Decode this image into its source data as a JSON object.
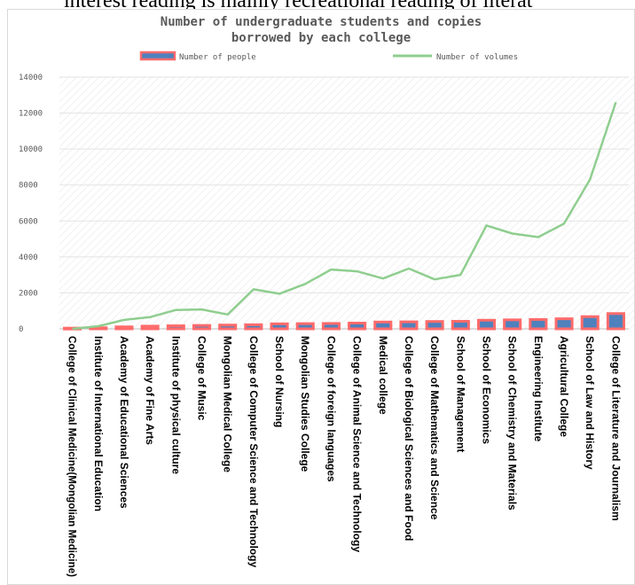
{
  "caption": "interest reading is mainly recreational reading of literat",
  "colors": {
    "bar_fill": "#4f81bd",
    "bar_border": "#ff6b6b",
    "line": "#8fce8f",
    "grid": "#e3e3e3"
  },
  "chart_data": {
    "type": "bar+line",
    "title_lines": [
      "Number of undergraduate students and copies",
      "borrowed by each college"
    ],
    "legend_position": "top",
    "ylim": [
      0,
      14000
    ],
    "yticks": [
      0,
      2000,
      4000,
      6000,
      8000,
      10000,
      12000,
      14000
    ],
    "ytick_labels": [
      "0",
      "2000",
      "4000",
      "6000",
      "8000",
      "10000",
      "12000",
      "14000"
    ],
    "grid": true,
    "categories": [
      "College of Clinical Medicine(Mongolian Medicine)",
      "Institute of International Education",
      "Academy of Educational Sciences",
      "Academy of Fine Arts",
      "Institute of physical culture",
      "College of Music",
      "Mongolian Medical College",
      "College of Computer Science and Technology",
      "School of Nursing",
      "Mongolian Studies College",
      "College of foreign languages",
      "College of Animal Science and Technology",
      "Medical college",
      "College of Biological Sciences and Food",
      "College of Mathematics and Science",
      "School of Management",
      "School of Economics",
      "School of Chemistry and Materials",
      "Engineering Institute",
      "Agricultural College",
      "School of Law and History",
      "College of Literature and Journalism"
    ],
    "series": [
      {
        "name": "Number of people",
        "type": "bar",
        "values": [
          40,
          60,
          110,
          150,
          170,
          190,
          210,
          230,
          280,
          290,
          300,
          320,
          380,
          390,
          410,
          420,
          480,
          500,
          520,
          560,
          680,
          850
        ]
      },
      {
        "name": "Number of volumes",
        "type": "line",
        "values": [
          0,
          150,
          500,
          650,
          1050,
          1080,
          800,
          2200,
          1950,
          2500,
          3300,
          3200,
          2800,
          3350,
          2750,
          3000,
          5750,
          5300,
          5100,
          5850,
          8300,
          12600
        ]
      }
    ]
  }
}
